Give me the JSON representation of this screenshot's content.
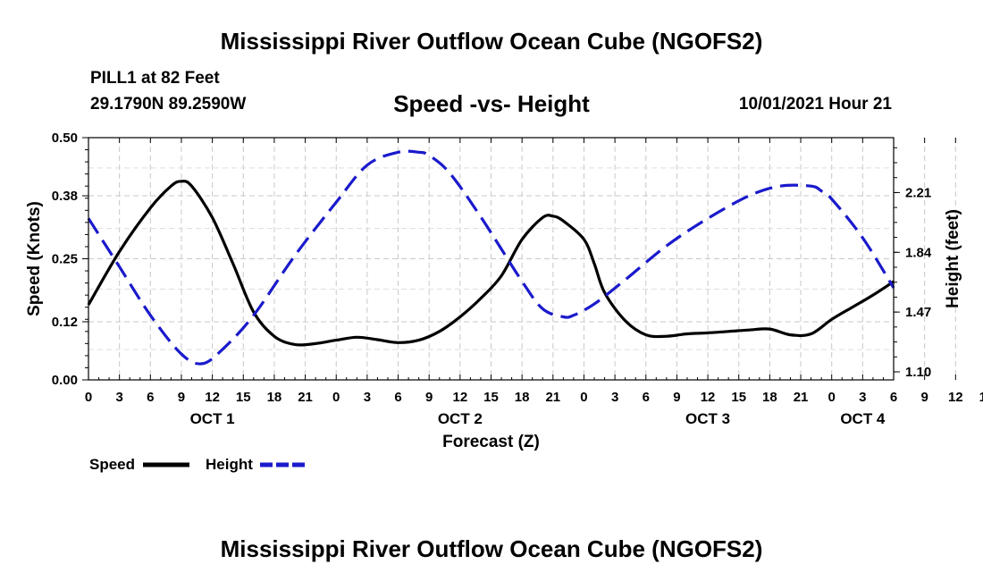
{
  "header": {
    "title": "Mississippi River Outflow Ocean Cube (NGOFS2)",
    "station": "PILL1 at 82 Feet",
    "coordinates": "29.1790N  89.2590W",
    "subtitle": "Speed -vs- Height",
    "datetime": "10/01/2021 Hour 21"
  },
  "footer": {
    "title": "Mississippi River Outflow Ocean Cube (NGOFS2)"
  },
  "colors": {
    "speed": "#000000",
    "height": "#1a1acc",
    "grid": "#c8c8c8"
  },
  "chart_data": {
    "type": "line",
    "title": "Speed -vs- Height",
    "xlabel": "Forecast (Z)",
    "ylabel": "Speed (Knots)",
    "y2label": "Height (feet)",
    "x_range_hours": [
      0,
      78
    ],
    "x_tick_labels": [
      "0",
      "3",
      "6",
      "9",
      "12",
      "15",
      "18",
      "21",
      "0",
      "3",
      "6",
      "9",
      "12",
      "15",
      "18",
      "21",
      "0",
      "3",
      "6",
      "9",
      "12",
      "15",
      "18",
      "21",
      "0",
      "3",
      "6",
      "9",
      "12",
      "15",
      "18",
      "21",
      "0",
      "3",
      "6"
    ],
    "day_labels": [
      {
        "label": "OCT 1",
        "hour": 12
      },
      {
        "label": "OCT 2",
        "hour": 36
      },
      {
        "label": "OCT 3",
        "hour": 60
      },
      {
        "label": "OCT 4",
        "hour": 75
      }
    ],
    "y_left": {
      "range": [
        0,
        0.5
      ],
      "ticks": [
        0.0,
        0.12,
        0.25,
        0.38,
        0.5
      ],
      "tick_labels": [
        "0.00",
        "0.12",
        "0.25",
        "0.38",
        "0.50"
      ]
    },
    "y_right": {
      "range": [
        1.05,
        2.55
      ],
      "ticks": [
        1.1,
        1.47,
        1.84,
        2.21
      ],
      "tick_labels": [
        "1.10",
        "1.47",
        "1.84",
        "2.21"
      ]
    },
    "grid": true,
    "legend_position": "bottom-left",
    "series": [
      {
        "name": "Speed",
        "axis": "left",
        "style": "solid",
        "hours": [
          0,
          3,
          6,
          8,
          9,
          10,
          12,
          14,
          16,
          18,
          20,
          22,
          24,
          26,
          28,
          30,
          32,
          34,
          36,
          38,
          40,
          42,
          44,
          45,
          46,
          48,
          49,
          50,
          52,
          54,
          56,
          58,
          60,
          62,
          64,
          66,
          68,
          70,
          72,
          74,
          76,
          78
        ],
        "values": [
          0.155,
          0.265,
          0.355,
          0.4,
          0.41,
          0.4,
          0.335,
          0.24,
          0.14,
          0.09,
          0.073,
          0.075,
          0.082,
          0.088,
          0.083,
          0.077,
          0.082,
          0.1,
          0.13,
          0.168,
          0.215,
          0.29,
          0.335,
          0.338,
          0.328,
          0.29,
          0.24,
          0.18,
          0.122,
          0.093,
          0.09,
          0.095,
          0.097,
          0.1,
          0.103,
          0.105,
          0.093,
          0.095,
          0.125,
          0.15,
          0.175,
          0.203
        ]
      },
      {
        "name": "Height",
        "axis": "right",
        "style": "dashed",
        "hours": [
          0,
          3,
          6,
          9,
          11,
          13,
          16,
          20,
          24,
          27,
          30,
          32,
          33,
          35,
          38,
          42,
          44,
          46,
          47,
          49,
          52,
          56,
          60,
          64,
          67,
          70,
          71,
          72,
          75,
          78
        ],
        "values": [
          2.05,
          1.75,
          1.45,
          1.21,
          1.15,
          1.24,
          1.45,
          1.82,
          2.15,
          2.38,
          2.46,
          2.46,
          2.44,
          2.33,
          2.06,
          1.66,
          1.49,
          1.44,
          1.45,
          1.52,
          1.67,
          1.88,
          2.05,
          2.19,
          2.25,
          2.25,
          2.22,
          2.17,
          1.93,
          1.62
        ]
      }
    ]
  }
}
